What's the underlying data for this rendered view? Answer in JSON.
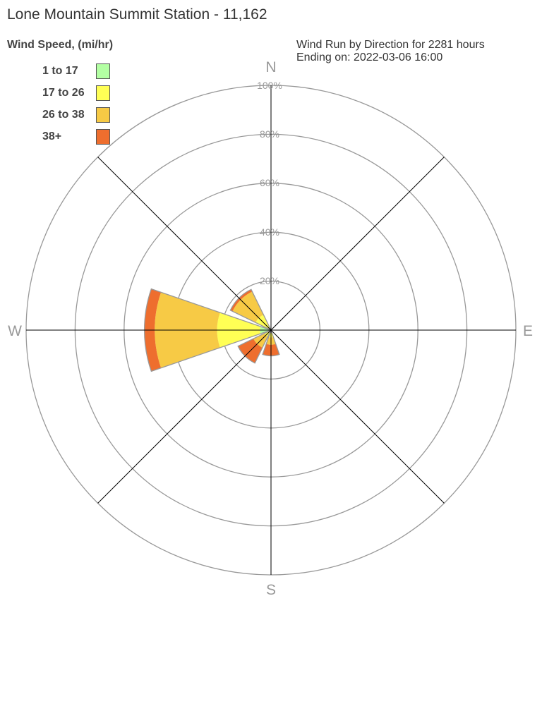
{
  "title": "Lone Mountain Summit Station - 11,162",
  "legend_title": "Wind Speed, (mi/hr)",
  "subtitle_line1": "Wind Run by Direction for 2281 hours",
  "subtitle_line2": "Ending on: 2022-03-06 16:00",
  "chart_data": {
    "type": "wind-rose",
    "title": "Lone Mountain Summit Station - 11,162",
    "radial_ticks": [
      "20%",
      "40%",
      "60%",
      "80%",
      "100%"
    ],
    "radial_range": [
      0,
      100
    ],
    "direction_labels": [
      "N",
      "E",
      "S",
      "W"
    ],
    "directions": [
      "N",
      "NE",
      "E",
      "SE",
      "S",
      "SW",
      "W",
      "NW"
    ],
    "direction_degrees": [
      0,
      45,
      90,
      135,
      180,
      225,
      270,
      315
    ],
    "stacked": true,
    "series": [
      {
        "name": "1 to 17",
        "color": "#b3ffa3",
        "values": [
          0,
          0,
          0,
          0,
          1,
          1,
          4.5,
          1
        ]
      },
      {
        "name": "17 to 26",
        "color": "#ffff55",
        "values": [
          0,
          0,
          0,
          0,
          2,
          2,
          17.5,
          6
        ]
      },
      {
        "name": "26 to 38",
        "color": "#f7ca45",
        "values": [
          0,
          0,
          0,
          0,
          3,
          5,
          25.5,
          10.5
        ]
      },
      {
        "name": "38+",
        "color": "#ee6e2e",
        "values": [
          0,
          0,
          0,
          0,
          4.5,
          7,
          4.2,
          1
        ]
      }
    ]
  }
}
